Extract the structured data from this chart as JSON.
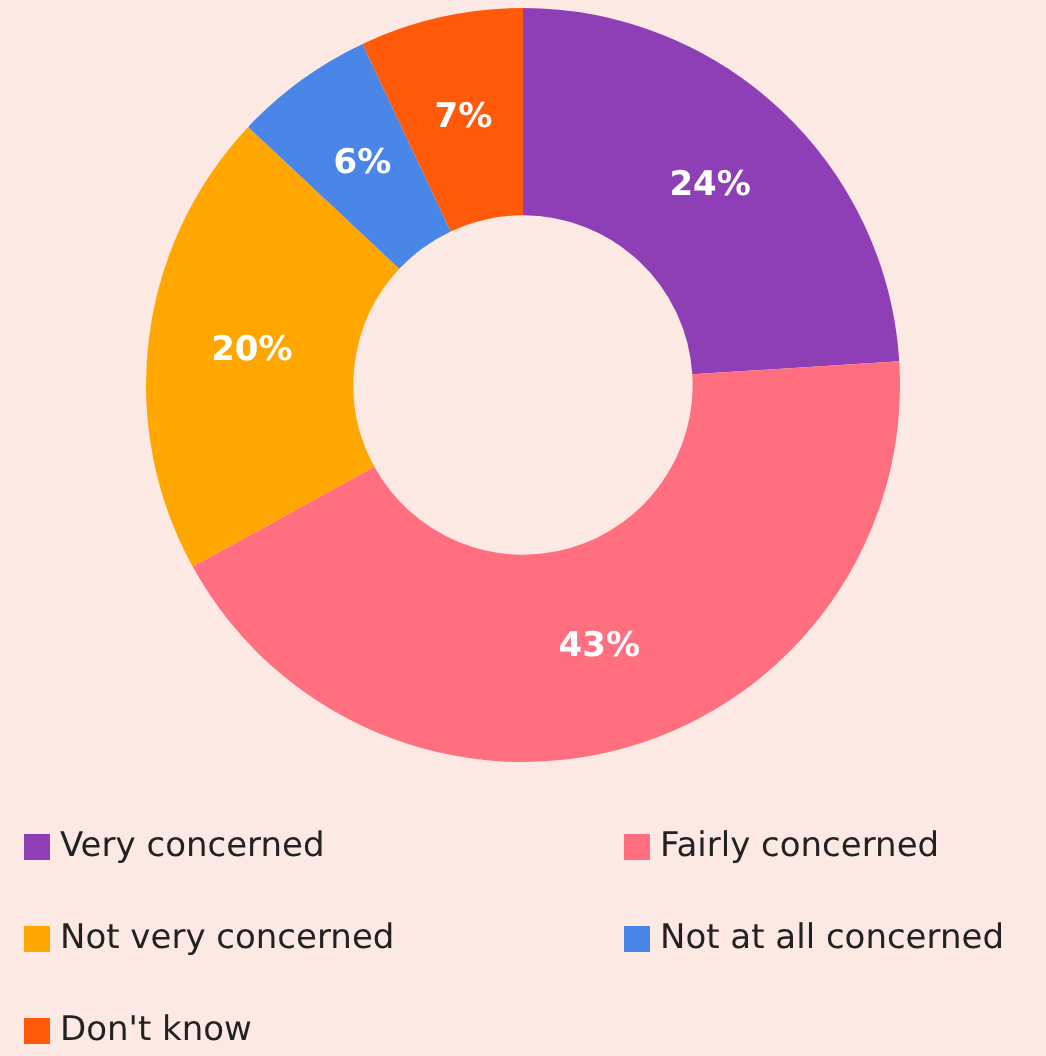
{
  "chart_data": {
    "type": "donut",
    "categories": [
      "Very concerned",
      "Fairly concerned",
      "Not very concerned",
      "Not at all concerned",
      "Don't know"
    ],
    "values": [
      24,
      43,
      20,
      6,
      7
    ],
    "colors": [
      "#8e3fb5",
      "#ff6f80",
      "#ffa600",
      "#4a86e8",
      "#ff5a0a"
    ],
    "value_labels": [
      "24%",
      "43%",
      "20%",
      "6%",
      "7%"
    ],
    "legend": "bottom"
  }
}
